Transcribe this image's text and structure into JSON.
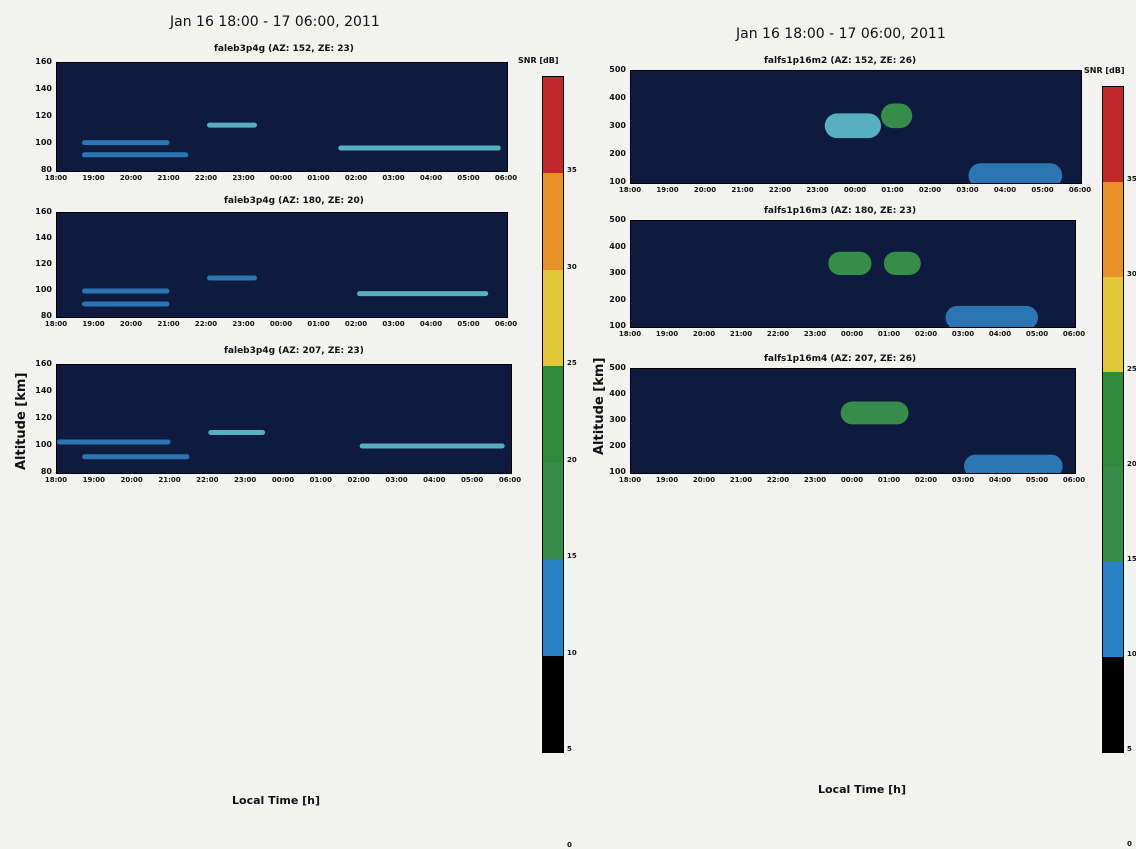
{
  "figure_left": {
    "title": "Jan 16 18:00 - 17 06:00, 2011",
    "xlabel": "Local Time [h]",
    "ylabel": "Altitude [km]",
    "colorbar_label": "SNR [dB]",
    "colorbar_ticks": [
      "35",
      "30",
      "25",
      "20",
      "15",
      "10",
      "5",
      "0"
    ],
    "x_ticks": [
      "18:00",
      "19:00",
      "20:00",
      "21:00",
      "22:00",
      "23:00",
      "00:00",
      "01:00",
      "02:00",
      "03:00",
      "04:00",
      "05:00",
      "06:00"
    ],
    "y_ticks": [
      "160",
      "140",
      "120",
      "100",
      "80"
    ],
    "panels": [
      {
        "title": "faleb3p4g (AZ: 152, ZE: 23)"
      },
      {
        "title": "faleb3p4g (AZ: 180, ZE: 20)"
      },
      {
        "title": "faleb3p4g (AZ: 207, ZE: 23)"
      }
    ]
  },
  "figure_right": {
    "title": "Jan 16 18:00 - 17 06:00, 2011",
    "xlabel": "Local Time [h]",
    "ylabel": "Altitude [km]",
    "colorbar_label": "SNR [dB]",
    "colorbar_ticks": [
      "35",
      "30",
      "25",
      "20",
      "15",
      "10",
      "5",
      "0"
    ],
    "x_ticks": [
      "18:00",
      "19:00",
      "20:00",
      "21:00",
      "22:00",
      "23:00",
      "00:00",
      "01:00",
      "02:00",
      "03:00",
      "04:00",
      "05:00",
      "06:00"
    ],
    "y_ticks": [
      "500",
      "400",
      "300",
      "200",
      "100"
    ],
    "panels": [
      {
        "title": "falfs1p16m2 (AZ: 152, ZE: 26)"
      },
      {
        "title": "falfs1p16m3 (AZ: 180, ZE: 23)"
      },
      {
        "title": "falfs1p16m4 (AZ: 207, ZE: 26)"
      }
    ]
  },
  "colors": {
    "plot_bg": "#0e1a3e",
    "echo_weak": "#2f7fc0",
    "echo_mid": "#5fc0d0",
    "echo_strong": "#3a9a4a",
    "colorbar": [
      "#c0282a",
      "#e8902a",
      "#e0c83a",
      "#2f8a3a",
      "#3a8a4a",
      "#2a7fc8",
      "#000000"
    ]
  },
  "chart_data": [
    {
      "type": "heatmap",
      "title": "faleb3p4g (AZ: 152, ZE: 23)",
      "x_range": [
        "18:00",
        "06:00"
      ],
      "ylim": [
        80,
        160
      ],
      "features": [
        {
          "x": [
            "18:40",
            "21:00"
          ],
          "y": 101,
          "snr": "weak"
        },
        {
          "x": [
            "18:40",
            "21:30"
          ],
          "y": 92,
          "snr": "weak"
        },
        {
          "x": [
            "22:00",
            "23:20"
          ],
          "y": 114,
          "snr": "mid"
        },
        {
          "x": [
            "01:30",
            "05:50"
          ],
          "y": 97,
          "snr": "mid"
        }
      ]
    },
    {
      "type": "heatmap",
      "title": "faleb3p4g (AZ: 180, ZE: 20)",
      "x_range": [
        "18:00",
        "06:00"
      ],
      "ylim": [
        80,
        160
      ],
      "features": [
        {
          "x": [
            "18:40",
            "21:00"
          ],
          "y": 100,
          "snr": "weak"
        },
        {
          "x": [
            "18:40",
            "21:00"
          ],
          "y": 90,
          "snr": "weak"
        },
        {
          "x": [
            "22:00",
            "23:20"
          ],
          "y": 110,
          "snr": "weak"
        },
        {
          "x": [
            "02:00",
            "05:30"
          ],
          "y": 98,
          "snr": "mid"
        }
      ]
    },
    {
      "type": "heatmap",
      "title": "faleb3p4g (AZ: 207, ZE: 23)",
      "x_range": [
        "18:00",
        "06:00"
      ],
      "ylim": [
        80,
        160
      ],
      "features": [
        {
          "x": [
            "18:00",
            "21:00"
          ],
          "y": 103,
          "snr": "weak"
        },
        {
          "x": [
            "18:40",
            "21:30"
          ],
          "y": 92,
          "snr": "weak"
        },
        {
          "x": [
            "22:00",
            "23:30"
          ],
          "y": 110,
          "snr": "mid"
        },
        {
          "x": [
            "02:00",
            "05:50"
          ],
          "y": 100,
          "snr": "mid"
        }
      ]
    },
    {
      "type": "heatmap",
      "title": "falfs1p16m2 (AZ: 152, ZE: 26)",
      "x_range": [
        "18:00",
        "06:00"
      ],
      "ylim": [
        50,
        500
      ],
      "features": [
        {
          "x": [
            "23:10",
            "00:40"
          ],
          "y": 280,
          "snr": "mid"
        },
        {
          "x": [
            "00:40",
            "01:30"
          ],
          "y": 320,
          "snr": "strong"
        },
        {
          "x": [
            "03:00",
            "05:30"
          ],
          "y": 80,
          "snr": "weak"
        }
      ]
    },
    {
      "type": "heatmap",
      "title": "falfs1p16m3 (AZ: 180, ZE: 23)",
      "x_range": [
        "18:00",
        "06:00"
      ],
      "ylim": [
        50,
        500
      ],
      "features": [
        {
          "x": [
            "23:20",
            "00:30"
          ],
          "y": 320,
          "snr": "strong"
        },
        {
          "x": [
            "00:50",
            "01:50"
          ],
          "y": 320,
          "snr": "strong"
        },
        {
          "x": [
            "02:30",
            "05:00"
          ],
          "y": 90,
          "snr": "weak"
        }
      ]
    },
    {
      "type": "heatmap",
      "title": "falfs1p16m4 (AZ: 207, ZE: 26)",
      "x_range": [
        "18:00",
        "06:00"
      ],
      "ylim": [
        50,
        500
      ],
      "features": [
        {
          "x": [
            "23:40",
            "01:30"
          ],
          "y": 310,
          "snr": "strong"
        },
        {
          "x": [
            "03:00",
            "05:40"
          ],
          "y": 80,
          "snr": "weak"
        }
      ]
    }
  ]
}
